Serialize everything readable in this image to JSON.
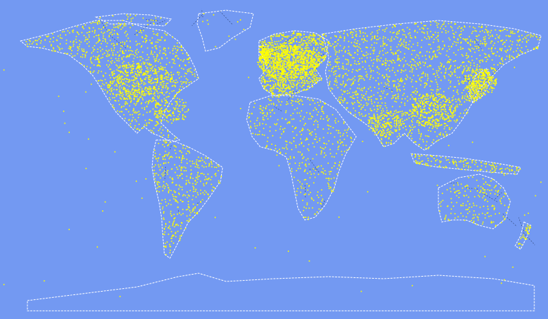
{
  "map": {
    "projection": "equirectangular",
    "ocean_color": "#7399f2",
    "coastline_color": "#ffffff",
    "border_color": "#1a2a4a",
    "point_color": "#ffff00",
    "point_shape": "dot"
  }
}
